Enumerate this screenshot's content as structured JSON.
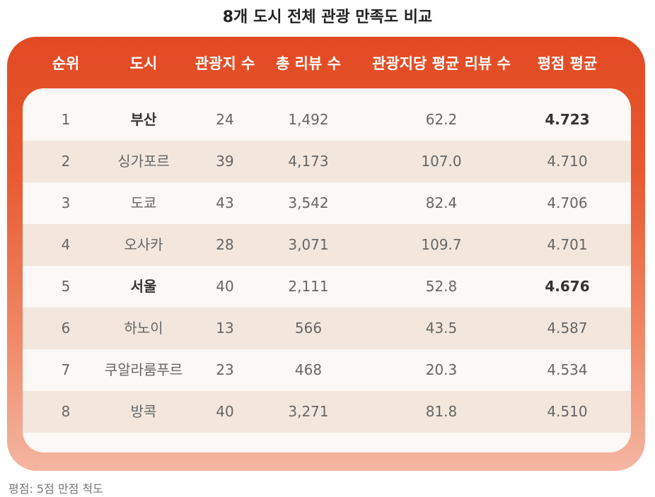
{
  "title": "8개 도시 전체 관광 만족도 비교",
  "table": {
    "headers": [
      "순위",
      "도시",
      "관광지 수",
      "총 리뷰 수",
      "관광지당 평균 리뷰 수",
      "평점 평균"
    ],
    "rows": [
      [
        "1",
        "부산",
        "24",
        "1,492",
        "62.2",
        "4.723"
      ],
      [
        "2",
        "싱가포르",
        "39",
        "4,173",
        "107.0",
        "4.710"
      ],
      [
        "3",
        "도쿄",
        "43",
        "3,542",
        "82.4",
        "4.706"
      ],
      [
        "4",
        "오사카",
        "28",
        "3,071",
        "109.7",
        "4.701"
      ],
      [
        "5",
        "서울",
        "40",
        "2,111",
        "52.8",
        "4.676"
      ],
      [
        "6",
        "하노이",
        "13",
        "566",
        "43.5",
        "4.587"
      ],
      [
        "7",
        "쿠알라룸푸르",
        "23",
        "468",
        "20.3",
        "4.534"
      ],
      [
        "8",
        "방콕",
        "40",
        "3,271",
        "81.8",
        "4.510"
      ]
    ]
  },
  "note": "평점: 5점 만점 척도"
}
